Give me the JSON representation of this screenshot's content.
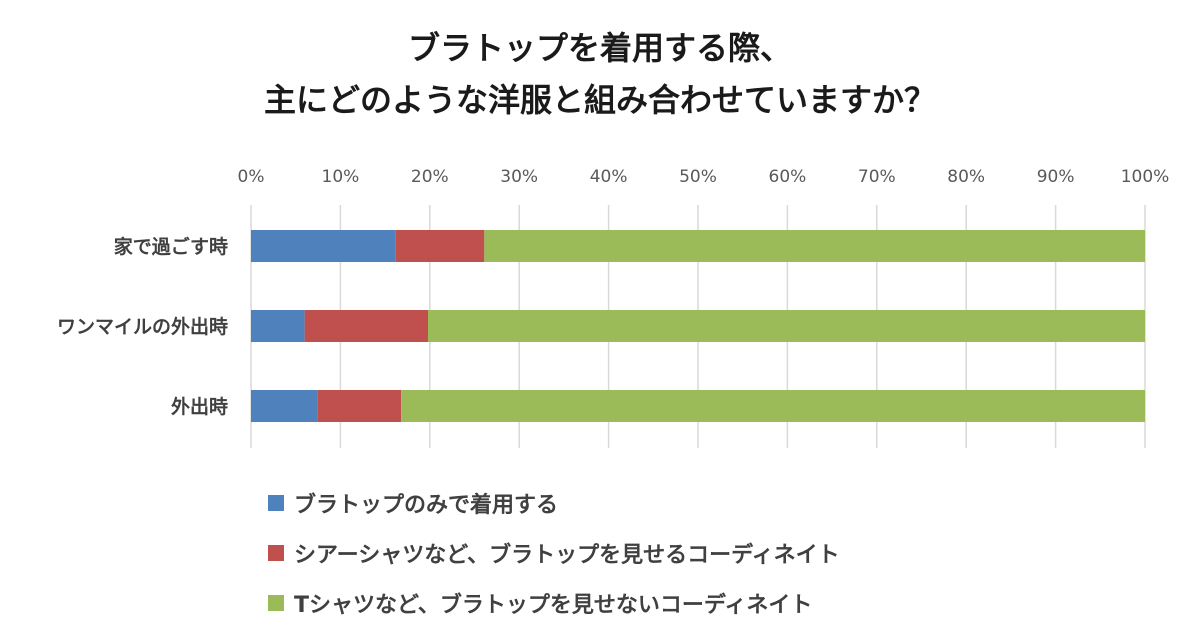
{
  "chart_data": {
    "type": "bar",
    "orientation": "horizontal",
    "stacked": true,
    "title_lines": [
      "ブラトップを着用する際、",
      "主にどのような洋服と組み合わせていますか？"
    ],
    "xlim": [
      0,
      100
    ],
    "x_ticks": [
      "0%",
      "10%",
      "20%",
      "30%",
      "40%",
      "50%",
      "60%",
      "70%",
      "80%",
      "90%",
      "100%"
    ],
    "grid": true,
    "legend_position": "bottom",
    "categories": [
      "家で過ごす時",
      "ワンマイルの外出時",
      "外出時"
    ],
    "series": [
      {
        "name": "ブラトップのみで着用する",
        "color": "#4f81bd",
        "values": [
          16.2,
          6.0,
          7.4
        ]
      },
      {
        "name": "シアーシャツなど、ブラトップを見せるコーディネイト",
        "color": "#c0504d",
        "values": [
          9.9,
          13.8,
          9.4
        ]
      },
      {
        "name": "Tシャツなど、ブラトップを見せないコーディネイト",
        "color": "#9bbb59",
        "values": [
          73.9,
          80.2,
          83.2
        ]
      }
    ]
  }
}
